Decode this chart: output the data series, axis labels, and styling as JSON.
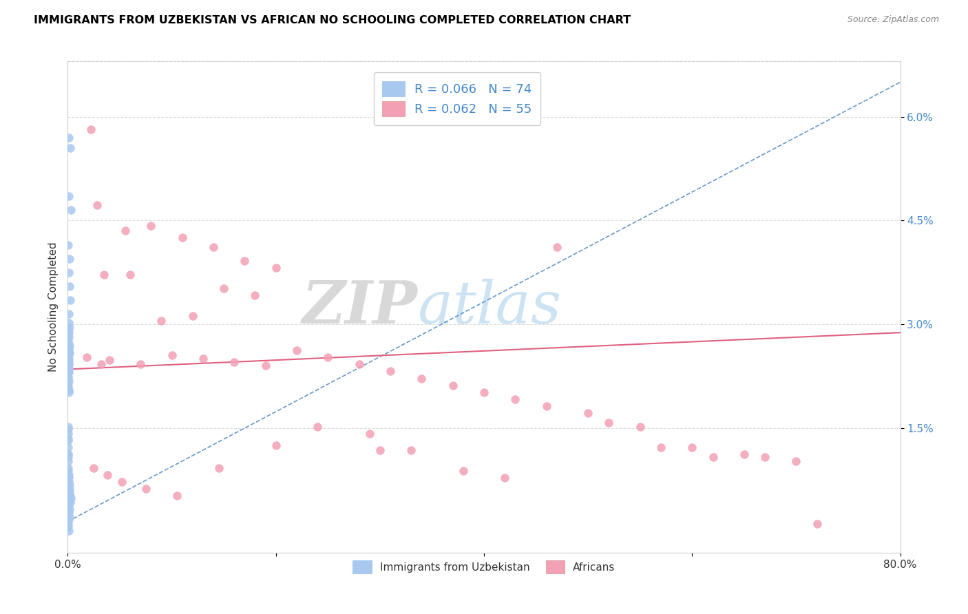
{
  "title": "IMMIGRANTS FROM UZBEKISTAN VS AFRICAN NO SCHOOLING COMPLETED CORRELATION CHART",
  "source": "Source: ZipAtlas.com",
  "ylabel": "No Schooling Completed",
  "ytick_labels": [
    "1.5%",
    "3.0%",
    "4.5%",
    "6.0%"
  ],
  "ytick_values": [
    1.5,
    3.0,
    4.5,
    6.0
  ],
  "xlim": [
    0.0,
    80.0
  ],
  "ylim": [
    -0.3,
    6.8
  ],
  "color_blue": "#a8c8f0",
  "color_pink": "#f4a0b4",
  "color_blue_text": "#4488cc",
  "color_blue_line": "#6699cc",
  "color_pink_line": "#e06080",
  "color_grid": "#dddddd",
  "watermark_zip": "ZIP",
  "watermark_atlas": "atlas",
  "legend_label1": "Immigrants from Uzbekistan",
  "legend_label2": "Africans",
  "blue_x": [
    0.08,
    0.25,
    0.12,
    0.3,
    0.05,
    0.18,
    0.08,
    0.15,
    0.22,
    0.1,
    0.05,
    0.08,
    0.12,
    0.06,
    0.1,
    0.15,
    0.2,
    0.08,
    0.12,
    0.18,
    0.05,
    0.08,
    0.1,
    0.12,
    0.06,
    0.08,
    0.1,
    0.05,
    0.07,
    0.09,
    0.05,
    0.06,
    0.08,
    0.1,
    0.05,
    0.06,
    0.07,
    0.08,
    0.05,
    0.06,
    0.05,
    0.06,
    0.07,
    0.05,
    0.06,
    0.05,
    0.06,
    0.05,
    0.06,
    0.07,
    0.05,
    0.06,
    0.05,
    0.06,
    0.07,
    0.05,
    0.06,
    0.1,
    0.08,
    0.12,
    0.2,
    0.15,
    0.18,
    0.22,
    0.3,
    0.25,
    0.12,
    0.18,
    0.08,
    0.15,
    0.1,
    0.06,
    0.05,
    0.08
  ],
  "blue_y": [
    5.7,
    5.55,
    4.85,
    4.65,
    4.15,
    3.95,
    3.75,
    3.55,
    3.35,
    3.15,
    2.9,
    2.88,
    2.82,
    2.78,
    2.72,
    2.68,
    2.95,
    3.02,
    2.62,
    2.58,
    2.55,
    2.5,
    2.45,
    2.42,
    2.38,
    2.35,
    2.3,
    2.25,
    2.22,
    2.18,
    2.12,
    2.08,
    2.05,
    2.02,
    2.6,
    2.62,
    2.66,
    2.58,
    2.52,
    2.48,
    2.44,
    2.42,
    2.38,
    2.35,
    2.32,
    1.52,
    1.42,
    1.48,
    1.32,
    1.35,
    1.22,
    1.12,
    1.08,
    1.12,
    1.02,
    0.92,
    0.88,
    0.82,
    0.78,
    0.72,
    0.68,
    0.62,
    0.58,
    0.52,
    0.48,
    0.42,
    0.38,
    0.32,
    0.28,
    0.22,
    0.18,
    0.12,
    0.08,
    0.02
  ],
  "pink_x": [
    1.8,
    3.2,
    2.2,
    2.8,
    5.5,
    8.0,
    11.0,
    14.0,
    17.0,
    20.0,
    3.5,
    6.0,
    9.0,
    12.0,
    15.0,
    18.0,
    22.0,
    25.0,
    28.0,
    31.0,
    34.0,
    37.0,
    40.0,
    43.0,
    46.0,
    50.0,
    55.0,
    60.0,
    65.0,
    70.0,
    4.0,
    7.0,
    10.0,
    13.0,
    16.0,
    19.0,
    24.0,
    29.0,
    33.0,
    38.0,
    42.0,
    47.0,
    52.0,
    57.0,
    62.0,
    67.0,
    72.0,
    2.5,
    3.8,
    5.2,
    7.5,
    10.5,
    14.5,
    20.0,
    30.0
  ],
  "pink_y": [
    2.52,
    2.42,
    5.82,
    4.72,
    4.35,
    4.42,
    4.25,
    4.12,
    3.92,
    3.82,
    3.72,
    3.72,
    3.05,
    3.12,
    3.52,
    3.42,
    2.62,
    2.52,
    2.42,
    2.32,
    2.22,
    2.12,
    2.02,
    1.92,
    1.82,
    1.72,
    1.52,
    1.22,
    1.12,
    1.02,
    2.48,
    2.42,
    2.55,
    2.5,
    2.45,
    2.4,
    1.52,
    1.42,
    1.18,
    0.88,
    0.78,
    4.12,
    1.58,
    1.22,
    1.08,
    1.08,
    0.12,
    0.92,
    0.82,
    0.72,
    0.62,
    0.52,
    0.92,
    1.25,
    1.18
  ],
  "blue_line_x": [
    0.0,
    80.0
  ],
  "blue_line_y": [
    0.15,
    6.5
  ],
  "pink_line_x": [
    0.0,
    80.0
  ],
  "pink_line_y": [
    2.35,
    2.88
  ]
}
